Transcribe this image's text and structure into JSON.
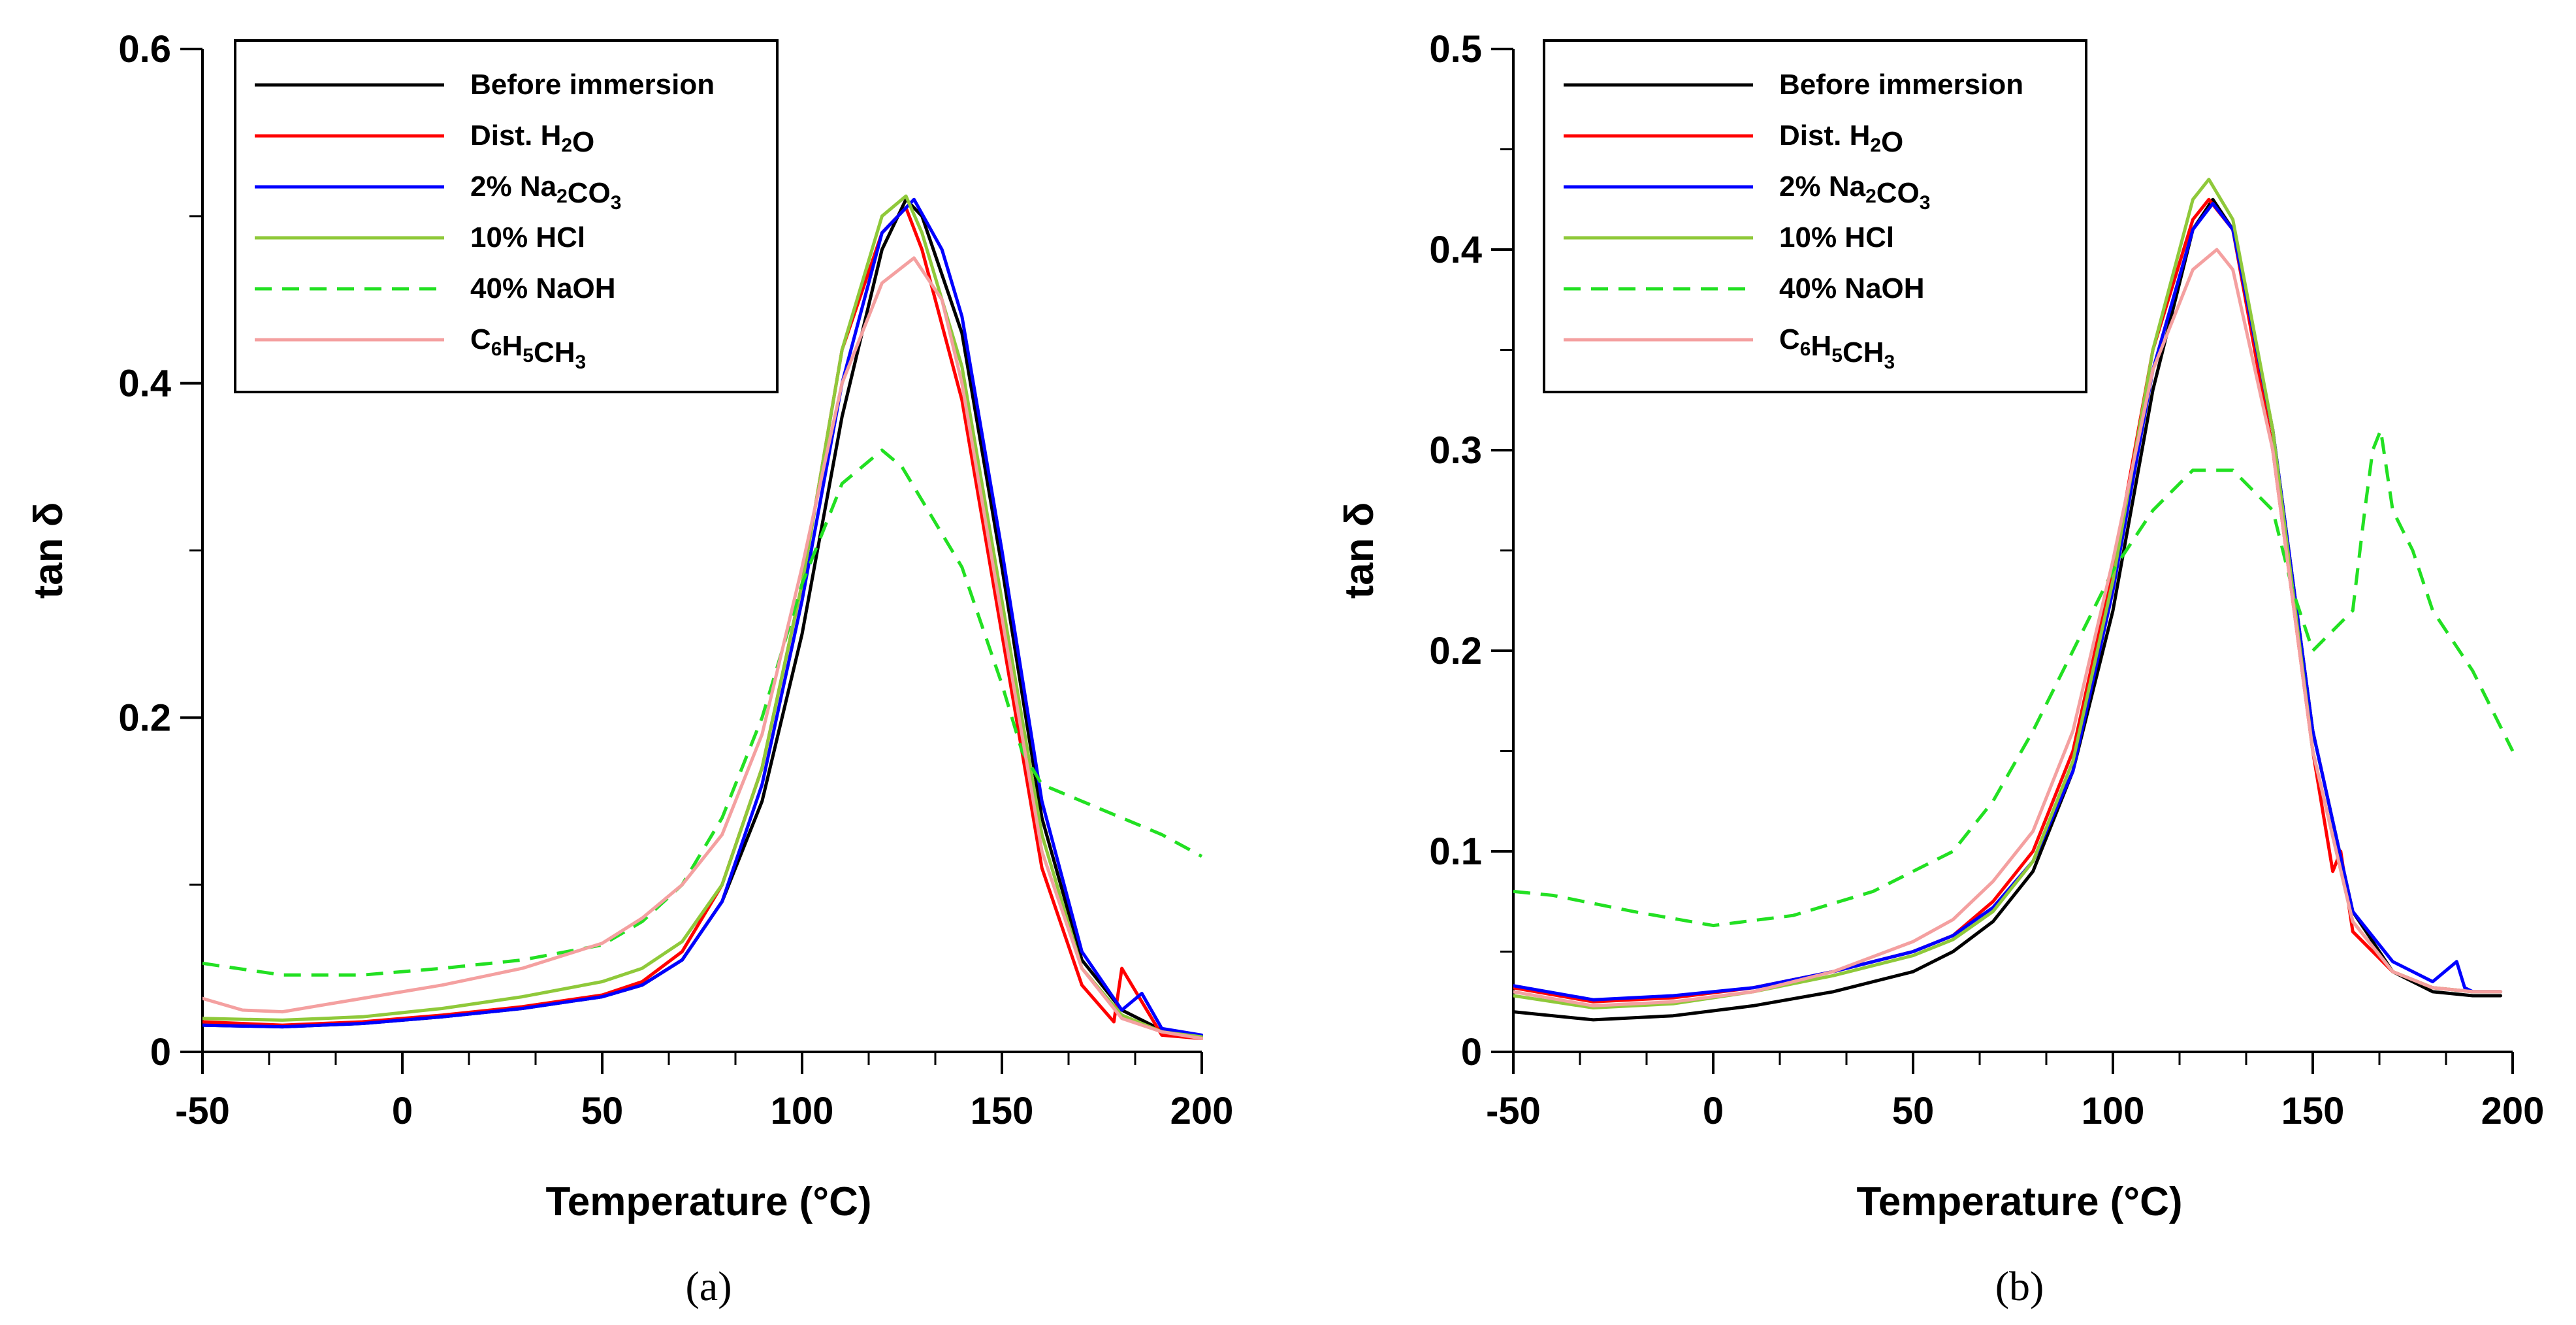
{
  "chart_data": [
    {
      "type": "line",
      "panel": "a",
      "caption": "(a)",
      "xlabel": "Temperature (°C)",
      "ylabel": "tan δ",
      "xlim": [
        -50,
        200
      ],
      "ylim": [
        0,
        0.6
      ],
      "xticks": [
        -50,
        0,
        50,
        100,
        150,
        200
      ],
      "yticks": [
        0,
        0.2,
        0.4,
        0.6
      ],
      "xtick_labels": [
        "-50",
        "0",
        "50",
        "100",
        "150",
        "200"
      ],
      "ytick_labels": [
        "0",
        "0.2",
        "0.4",
        "0.6"
      ],
      "legend_position": "top-left",
      "series": [
        {
          "name": "Before immersion",
          "legend": {
            "parts": [
              {
                "t": "Before immersion"
              }
            ]
          },
          "color": "#000000",
          "dash": false,
          "x": [
            -50,
            -30,
            -10,
            10,
            30,
            50,
            60,
            70,
            80,
            90,
            100,
            110,
            120,
            126,
            130,
            140,
            150,
            160,
            170,
            180,
            190,
            200
          ],
          "y": [
            0.016,
            0.015,
            0.017,
            0.021,
            0.026,
            0.033,
            0.04,
            0.055,
            0.09,
            0.15,
            0.25,
            0.38,
            0.48,
            0.51,
            0.5,
            0.43,
            0.29,
            0.14,
            0.055,
            0.025,
            0.013,
            0.009
          ]
        },
        {
          "name": "Dist. H2O",
          "legend": {
            "parts": [
              {
                "t": "Dist. H"
              },
              {
                "t": "2",
                "sub": true
              },
              {
                "t": "O"
              }
            ]
          },
          "color": "#ff0000",
          "dash": false,
          "x": [
            -50,
            -30,
            -10,
            10,
            30,
            50,
            60,
            70,
            80,
            90,
            100,
            110,
            120,
            126,
            130,
            140,
            150,
            160,
            170,
            178,
            180,
            190,
            200
          ],
          "y": [
            0.018,
            0.016,
            0.018,
            0.022,
            0.027,
            0.034,
            0.042,
            0.06,
            0.1,
            0.17,
            0.28,
            0.42,
            0.49,
            0.505,
            0.48,
            0.39,
            0.25,
            0.11,
            0.04,
            0.018,
            0.05,
            0.01,
            0.008
          ]
        },
        {
          "name": "2% Na2CO3",
          "legend": {
            "parts": [
              {
                "t": "2% Na"
              },
              {
                "t": "2",
                "sub": true
              },
              {
                "t": "CO"
              },
              {
                "t": "3",
                "sub": true
              }
            ]
          },
          "color": "#0000ff",
          "dash": false,
          "x": [
            -50,
            -30,
            -10,
            10,
            30,
            50,
            60,
            70,
            80,
            90,
            100,
            110,
            120,
            128,
            135,
            140,
            150,
            160,
            170,
            180,
            185,
            190,
            200
          ],
          "y": [
            0.016,
            0.015,
            0.017,
            0.021,
            0.026,
            0.033,
            0.04,
            0.055,
            0.09,
            0.16,
            0.27,
            0.4,
            0.49,
            0.51,
            0.48,
            0.44,
            0.3,
            0.15,
            0.06,
            0.025,
            0.035,
            0.014,
            0.01
          ]
        },
        {
          "name": "10% HCl",
          "legend": {
            "parts": [
              {
                "t": "10% HCl"
              }
            ]
          },
          "color": "#8fc93a",
          "dash": false,
          "x": [
            -50,
            -30,
            -10,
            10,
            30,
            50,
            60,
            70,
            80,
            90,
            100,
            110,
            120,
            126,
            130,
            140,
            150,
            160,
            170,
            180,
            190,
            200
          ],
          "y": [
            0.02,
            0.019,
            0.021,
            0.026,
            0.033,
            0.042,
            0.05,
            0.066,
            0.1,
            0.17,
            0.28,
            0.42,
            0.5,
            0.512,
            0.49,
            0.41,
            0.27,
            0.13,
            0.05,
            0.022,
            0.012,
            0.009
          ]
        },
        {
          "name": "40% NaOH",
          "legend": {
            "parts": [
              {
                "t": "40% NaOH"
              }
            ]
          },
          "color": "#22e022",
          "dash": true,
          "x": [
            -50,
            -30,
            -10,
            10,
            30,
            50,
            60,
            70,
            80,
            90,
            100,
            110,
            120,
            125,
            130,
            140,
            150,
            155,
            160,
            170,
            180,
            190,
            200
          ],
          "y": [
            0.053,
            0.046,
            0.046,
            0.05,
            0.055,
            0.064,
            0.078,
            0.1,
            0.14,
            0.2,
            0.28,
            0.34,
            0.36,
            0.35,
            0.33,
            0.29,
            0.22,
            0.18,
            0.16,
            0.15,
            0.14,
            0.13,
            0.117
          ]
        },
        {
          "name": "C6H5CH3",
          "legend": {
            "parts": [
              {
                "t": "C"
              },
              {
                "t": "6",
                "sub": true
              },
              {
                "t": "H"
              },
              {
                "t": "5",
                "sub": true
              },
              {
                "t": "CH"
              },
              {
                "t": "3",
                "sub": true
              }
            ]
          },
          "color": "#f4a0a0",
          "dash": false,
          "x": [
            -50,
            -40,
            -30,
            -10,
            10,
            30,
            50,
            60,
            70,
            80,
            90,
            100,
            110,
            120,
            128,
            135,
            140,
            150,
            160,
            170,
            180,
            190,
            200
          ],
          "y": [
            0.032,
            0.025,
            0.024,
            0.032,
            0.04,
            0.05,
            0.065,
            0.08,
            0.1,
            0.13,
            0.19,
            0.29,
            0.4,
            0.46,
            0.475,
            0.45,
            0.4,
            0.26,
            0.12,
            0.05,
            0.02,
            0.012,
            0.008
          ]
        }
      ]
    },
    {
      "type": "line",
      "panel": "b",
      "caption": "(b)",
      "xlabel": "Temperature (°C)",
      "ylabel": "tan δ",
      "xlim": [
        -50,
        200
      ],
      "ylim": [
        0,
        0.5
      ],
      "xticks": [
        -50,
        0,
        50,
        100,
        150,
        200
      ],
      "yticks": [
        0,
        0.1,
        0.2,
        0.3,
        0.4,
        0.5
      ],
      "xtick_labels": [
        "-50",
        "0",
        "50",
        "100",
        "150",
        "200"
      ],
      "ytick_labels": [
        "0",
        "0.1",
        "0.2",
        "0.3",
        "0.4",
        "0.5"
      ],
      "legend_position": "top-left",
      "series": [
        {
          "name": "Before immersion",
          "legend": {
            "parts": [
              {
                "t": "Before immersion"
              }
            ]
          },
          "color": "#000000",
          "dash": false,
          "x": [
            -50,
            -30,
            -10,
            10,
            30,
            50,
            60,
            70,
            80,
            90,
            100,
            110,
            120,
            125,
            130,
            140,
            150,
            160,
            170,
            180,
            190,
            197
          ],
          "y": [
            0.02,
            0.016,
            0.018,
            0.023,
            0.03,
            0.04,
            0.05,
            0.065,
            0.09,
            0.14,
            0.22,
            0.33,
            0.41,
            0.425,
            0.41,
            0.31,
            0.16,
            0.07,
            0.04,
            0.03,
            0.028,
            0.028
          ]
        },
        {
          "name": "Dist. H2O",
          "legend": {
            "parts": [
              {
                "t": "Dist. H"
              },
              {
                "t": "2",
                "sub": true
              },
              {
                "t": "O"
              }
            ]
          },
          "color": "#ff0000",
          "dash": false,
          "x": [
            -50,
            -30,
            -10,
            10,
            30,
            50,
            60,
            70,
            80,
            90,
            100,
            110,
            120,
            124,
            130,
            140,
            150,
            155,
            157,
            160,
            170,
            180,
            190,
            197
          ],
          "y": [
            0.032,
            0.025,
            0.027,
            0.032,
            0.04,
            0.05,
            0.058,
            0.075,
            0.1,
            0.15,
            0.24,
            0.35,
            0.415,
            0.425,
            0.41,
            0.3,
            0.15,
            0.09,
            0.1,
            0.06,
            0.04,
            0.032,
            0.03,
            0.03
          ]
        },
        {
          "name": "2% Na2CO3",
          "legend": {
            "parts": [
              {
                "t": "2% Na"
              },
              {
                "t": "2",
                "sub": true
              },
              {
                "t": "CO"
              },
              {
                "t": "3",
                "sub": true
              }
            ]
          },
          "color": "#0000ff",
          "dash": false,
          "x": [
            -50,
            -30,
            -10,
            10,
            30,
            50,
            60,
            70,
            80,
            90,
            100,
            110,
            120,
            125,
            130,
            140,
            150,
            160,
            170,
            180,
            186,
            188,
            190,
            197
          ],
          "y": [
            0.033,
            0.026,
            0.028,
            0.032,
            0.04,
            0.05,
            0.058,
            0.072,
            0.095,
            0.14,
            0.23,
            0.34,
            0.41,
            0.423,
            0.41,
            0.31,
            0.16,
            0.07,
            0.045,
            0.035,
            0.045,
            0.032,
            0.03,
            0.03
          ]
        },
        {
          "name": "10% HCl",
          "legend": {
            "parts": [
              {
                "t": "10% HCl"
              }
            ]
          },
          "color": "#8fc93a",
          "dash": false,
          "x": [
            -50,
            -30,
            -10,
            10,
            30,
            50,
            60,
            70,
            80,
            90,
            100,
            110,
            120,
            124,
            130,
            140,
            150,
            160,
            170,
            180,
            190,
            197
          ],
          "y": [
            0.028,
            0.022,
            0.024,
            0.03,
            0.038,
            0.048,
            0.056,
            0.07,
            0.095,
            0.145,
            0.235,
            0.35,
            0.425,
            0.435,
            0.415,
            0.31,
            0.15,
            0.065,
            0.04,
            0.032,
            0.03,
            0.03
          ]
        },
        {
          "name": "40% NaOH",
          "legend": {
            "parts": [
              {
                "t": "40% NaOH"
              }
            ]
          },
          "color": "#22e022",
          "dash": true,
          "x": [
            -50,
            -40,
            -20,
            0,
            20,
            40,
            60,
            70,
            80,
            90,
            100,
            110,
            120,
            130,
            140,
            145,
            150,
            155,
            160,
            163,
            165,
            167,
            170,
            175,
            180,
            190,
            200
          ],
          "y": [
            0.08,
            0.078,
            0.07,
            0.063,
            0.068,
            0.08,
            0.1,
            0.125,
            0.16,
            0.2,
            0.24,
            0.27,
            0.29,
            0.29,
            0.27,
            0.23,
            0.2,
            0.21,
            0.22,
            0.27,
            0.3,
            0.31,
            0.27,
            0.25,
            0.22,
            0.19,
            0.15
          ]
        },
        {
          "name": "C6H5CH3",
          "legend": {
            "parts": [
              {
                "t": "C"
              },
              {
                "t": "6",
                "sub": true
              },
              {
                "t": "H"
              },
              {
                "t": "5",
                "sub": true
              },
              {
                "t": "CH"
              },
              {
                "t": "3",
                "sub": true
              }
            ]
          },
          "color": "#f4a0a0",
          "dash": false,
          "x": [
            -50,
            -30,
            -10,
            10,
            30,
            50,
            60,
            70,
            80,
            90,
            100,
            110,
            120,
            126,
            130,
            140,
            150,
            160,
            170,
            180,
            190,
            197
          ],
          "y": [
            0.03,
            0.023,
            0.025,
            0.03,
            0.04,
            0.055,
            0.066,
            0.085,
            0.11,
            0.16,
            0.245,
            0.34,
            0.39,
            0.4,
            0.39,
            0.3,
            0.15,
            0.065,
            0.04,
            0.032,
            0.03,
            0.03
          ]
        }
      ]
    }
  ]
}
